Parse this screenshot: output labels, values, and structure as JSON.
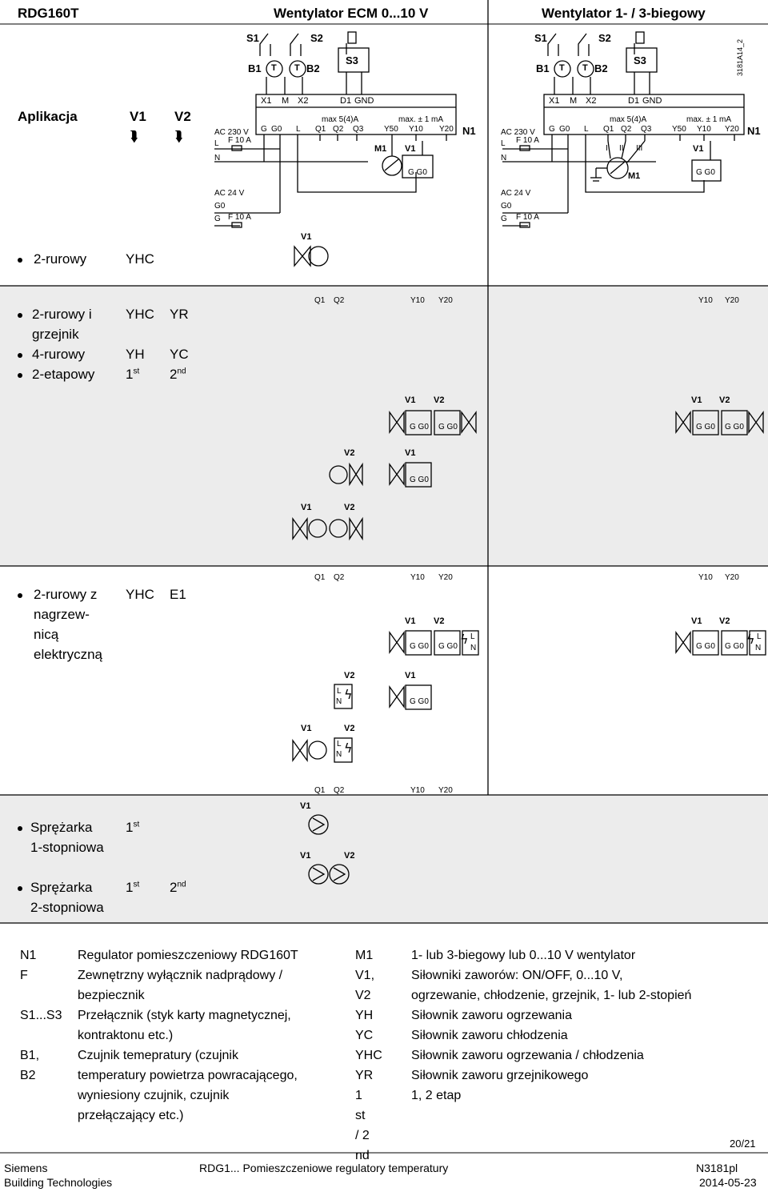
{
  "header": {
    "device": "RDG160T",
    "col_ecm": "Wentylator ECM 0...10 V",
    "col_fan": "Wentylator 1- / 3-biegowy",
    "doc_code": "3181A14_2"
  },
  "application": {
    "label": "Aplikacja",
    "v1": "V1",
    "v2": "V2",
    "arrow": "⮯"
  },
  "wiring": {
    "s1": "S1",
    "s2": "S2",
    "s3": "S3",
    "b1": "B1",
    "b2": "B2",
    "t": "T",
    "x1": "X1",
    "m": "M",
    "x2": "X2",
    "d1": "D1",
    "gnd": "GND",
    "ac230": "AC 230 V",
    "l": "L",
    "n": "N",
    "f10a": "F 10 A",
    "g": "G",
    "g0": "G0",
    "q1": "Q1",
    "q2": "Q2",
    "q3": "Q3",
    "max54": "max  5(4)A",
    "max1ma": "max. ± 1 mA",
    "y50": "Y50",
    "y10": "Y10",
    "y20": "Y20",
    "n1": "N1",
    "m1": "M1",
    "v1": "V1",
    "v2": "V2",
    "gg0": "G G0",
    "ac24": "AC 24 V",
    "r1": "I",
    "r2": "II",
    "r3": "III"
  },
  "rows": [
    {
      "bullets": [
        "2-rurowy"
      ],
      "c1": [
        "YHC"
      ],
      "c2": []
    },
    {
      "bullets": [
        "2-rurowy i",
        "grzejnik",
        "4-rurowy",
        "2-etapowy"
      ],
      "c1": [
        "YHC",
        "YH",
        "1"
      ],
      "c2": [
        "YR",
        "YC",
        "2"
      ],
      "st": "st",
      "nd": "nd"
    },
    {
      "bullets": [
        "2-rurowy z",
        "nagrzew-",
        "nicą",
        "elektryczną"
      ],
      "c1": [
        "YHC"
      ],
      "c2": [
        "E1"
      ]
    },
    {
      "bullets": [
        "Sprężarka",
        "1-stopniowa"
      ],
      "c1": [
        "1"
      ],
      "c2": [],
      "st": "st"
    },
    {
      "bullets": [
        "Sprężarka",
        "2-stopniowa"
      ],
      "c1": [
        "1"
      ],
      "c2": [
        "2"
      ],
      "st": "st",
      "nd": "nd"
    }
  ],
  "legend": {
    "left": [
      {
        "key": "N1",
        "lines": [
          "Regulator pomieszczeniowy RDG160T"
        ]
      },
      {
        "key": "F",
        "lines": [
          "Zewnętrzny wyłącznik nadprądowy /",
          "bezpiecznik"
        ]
      },
      {
        "key": "S1...S3",
        "lines": [
          "Przełącznik (styk karty magnetycznej,",
          "kontraktonu etc.)"
        ]
      },
      {
        "key": "B1, B2",
        "lines": [
          "Czujnik temepratury (czujnik",
          "temperatury powietrza powracającego,",
          "wyniesiony czujnik, czujnik",
          "przełączający etc.)"
        ]
      }
    ],
    "right": [
      {
        "key": "M1",
        "lines": [
          "1- lub 3-biegowy lub 0...10 V wentylator"
        ]
      },
      {
        "key": "V1, V2",
        "lines": [
          "Siłowniki zaworów: ON/OFF, 0...10 V,",
          "ogrzewanie, chłodzenie, grzejnik, 1- lub 2-stopień"
        ]
      },
      {
        "key": "YH",
        "lines": [
          "Siłownik zaworu ogrzewania"
        ]
      },
      {
        "key": "YC",
        "lines": [
          "Siłownik zaworu chłodzenia"
        ]
      },
      {
        "key": "YHC",
        "lines": [
          "Siłownik zaworu ogrzewania / chłodzenia"
        ]
      },
      {
        "key": "YR",
        "lines": [
          "Siłownik zaworu grzejnikowego"
        ]
      },
      {
        "key": "1 st / 2 nd",
        "lines": [
          "1, 2 etap"
        ]
      }
    ]
  },
  "footer": {
    "page": "20/21",
    "company": "Siemens",
    "division": "Building Technologies",
    "title": "RDG1... Pomieszczeniowe regulatory temperatury",
    "doc": "N3181pl",
    "date": "2014-05-23"
  }
}
